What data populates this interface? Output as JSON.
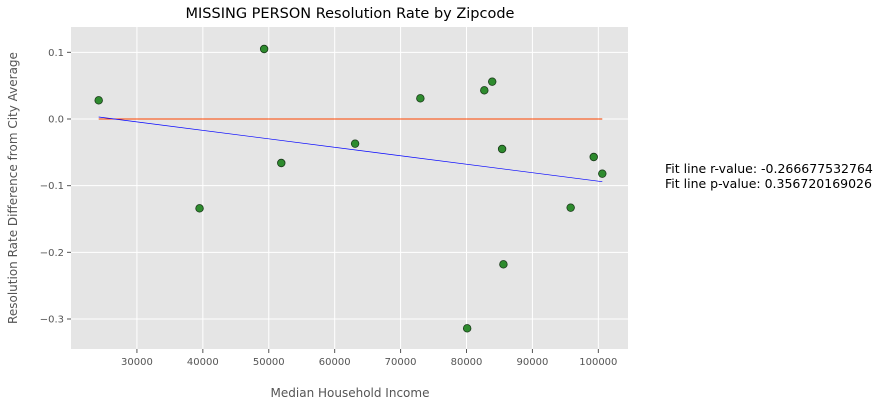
{
  "chart_data": {
    "type": "scatter",
    "title": "MISSING PERSON Resolution Rate by Zipcode",
    "xlabel": "Median Household Income",
    "ylabel": "Resolution Rate Difference from City Average",
    "xlim": [
      20000,
      104500
    ],
    "ylim": [
      -0.345,
      0.138
    ],
    "xticks": [
      30000,
      40000,
      50000,
      60000,
      70000,
      80000,
      90000,
      100000
    ],
    "yticks": [
      -0.3,
      -0.2,
      -0.1,
      0.0,
      0.1
    ],
    "ytick_labels": [
      "−0.3",
      "−0.2",
      "−0.1",
      "0.0",
      "0.1"
    ],
    "grid": true,
    "points": [
      {
        "x": 24200,
        "y": 0.028
      },
      {
        "x": 39500,
        "y": -0.134
      },
      {
        "x": 49300,
        "y": 0.105
      },
      {
        "x": 51900,
        "y": -0.066
      },
      {
        "x": 63100,
        "y": -0.037
      },
      {
        "x": 73000,
        "y": 0.031
      },
      {
        "x": 80100,
        "y": -0.314
      },
      {
        "x": 82700,
        "y": 0.043
      },
      {
        "x": 83900,
        "y": 0.056
      },
      {
        "x": 85400,
        "y": -0.045
      },
      {
        "x": 85600,
        "y": -0.218
      },
      {
        "x": 95800,
        "y": -0.133
      },
      {
        "x": 99300,
        "y": -0.057
      },
      {
        "x": 100600,
        "y": -0.082
      }
    ],
    "fit_line": {
      "x": [
        24200,
        100600
      ],
      "y": [
        0.003,
        -0.094
      ]
    },
    "zero_line": {
      "x": [
        24200,
        100600
      ],
      "y": [
        0.0,
        0.0
      ]
    },
    "colors": {
      "background": "#e5e5e5",
      "grid": "#ffffff",
      "point_fill": "#2e8b2e",
      "point_edge": "#1a3a1a",
      "fit_line": "#0000ff",
      "zero_line": "#ff4500"
    }
  },
  "annotation": {
    "r_value": "Fit line r-value: -0.266677532764",
    "p_value": "Fit line p-value: 0.356720169026"
  }
}
